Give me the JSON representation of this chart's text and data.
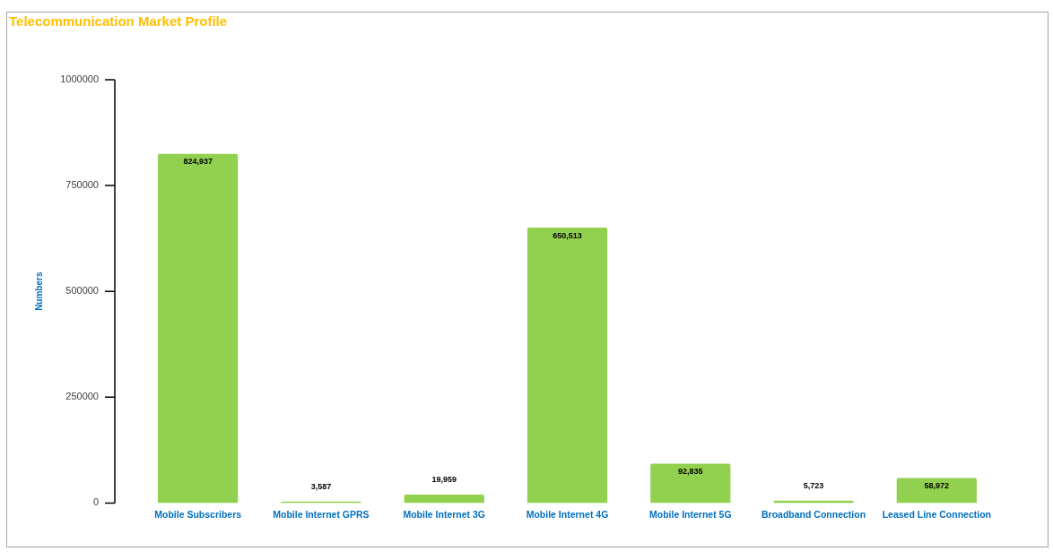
{
  "chart_data": {
    "type": "bar",
    "title": "Telecommunication Market Profile",
    "ylabel": "Numbers",
    "categories": [
      "Mobile Subscribers",
      "Mobile Internet GPRS",
      "Mobile Internet 3G",
      "Mobile Internet 4G",
      "Mobile Internet 5G",
      "Broadband Connection",
      "Leased Line Connection"
    ],
    "values": [
      824937,
      3587,
      19959,
      650513,
      92835,
      5723,
      58972
    ],
    "value_labels": [
      "824,937",
      "3,587",
      "19,959",
      "650,513",
      "92,835",
      "5,723",
      "58,972"
    ],
    "color": "#92d050",
    "ylim": [
      0,
      1000000
    ],
    "yticks": [
      0,
      250000,
      500000,
      750000,
      1000000
    ]
  }
}
